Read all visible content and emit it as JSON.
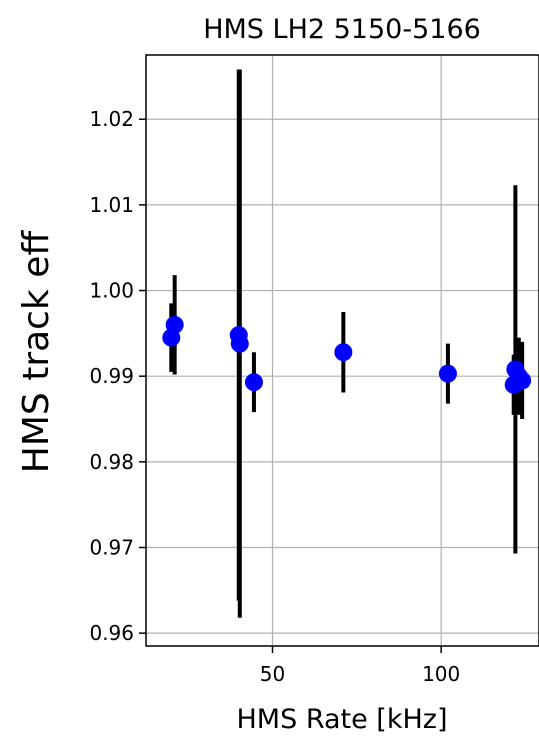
{
  "chart_data": {
    "type": "scatter",
    "title": "HMS LH2 5150-5166",
    "xlabel": "HMS Rate [kHz]",
    "ylabel": "HMS track eff",
    "xlim": [
      12.5,
      129
    ],
    "ylim": [
      0.9585,
      1.0275
    ],
    "xticks": [
      50,
      100
    ],
    "xtick_labels": [
      "50",
      "100"
    ],
    "yticks": [
      0.96,
      0.97,
      0.98,
      0.99,
      1.0,
      1.01,
      1.02
    ],
    "ytick_labels": [
      "0.96",
      "0.97",
      "0.98",
      "0.99",
      "1.00",
      "1.01",
      "1.02"
    ],
    "grid": true,
    "marker_color": "#0000ff",
    "errorbar_color": "#000000",
    "points": [
      {
        "x": 20.0,
        "y": 0.9945,
        "err": 0.004
      },
      {
        "x": 21.0,
        "y": 0.996,
        "err": 0.0058
      },
      {
        "x": 40.0,
        "y": 0.9948,
        "err": 0.031
      },
      {
        "x": 40.3,
        "y": 0.9938,
        "err": 0.032
      },
      {
        "x": 44.5,
        "y": 0.9893,
        "err": 0.0035
      },
      {
        "x": 71.0,
        "y": 0.9928,
        "err": 0.0047
      },
      {
        "x": 102.0,
        "y": 0.9903,
        "err": 0.0035
      },
      {
        "x": 121.5,
        "y": 0.989,
        "err": 0.0035
      },
      {
        "x": 122.0,
        "y": 0.9908,
        "err": 0.0215
      },
      {
        "x": 123.0,
        "y": 0.99,
        "err": 0.0045
      },
      {
        "x": 124.0,
        "y": 0.9895,
        "err": 0.0045
      }
    ]
  }
}
